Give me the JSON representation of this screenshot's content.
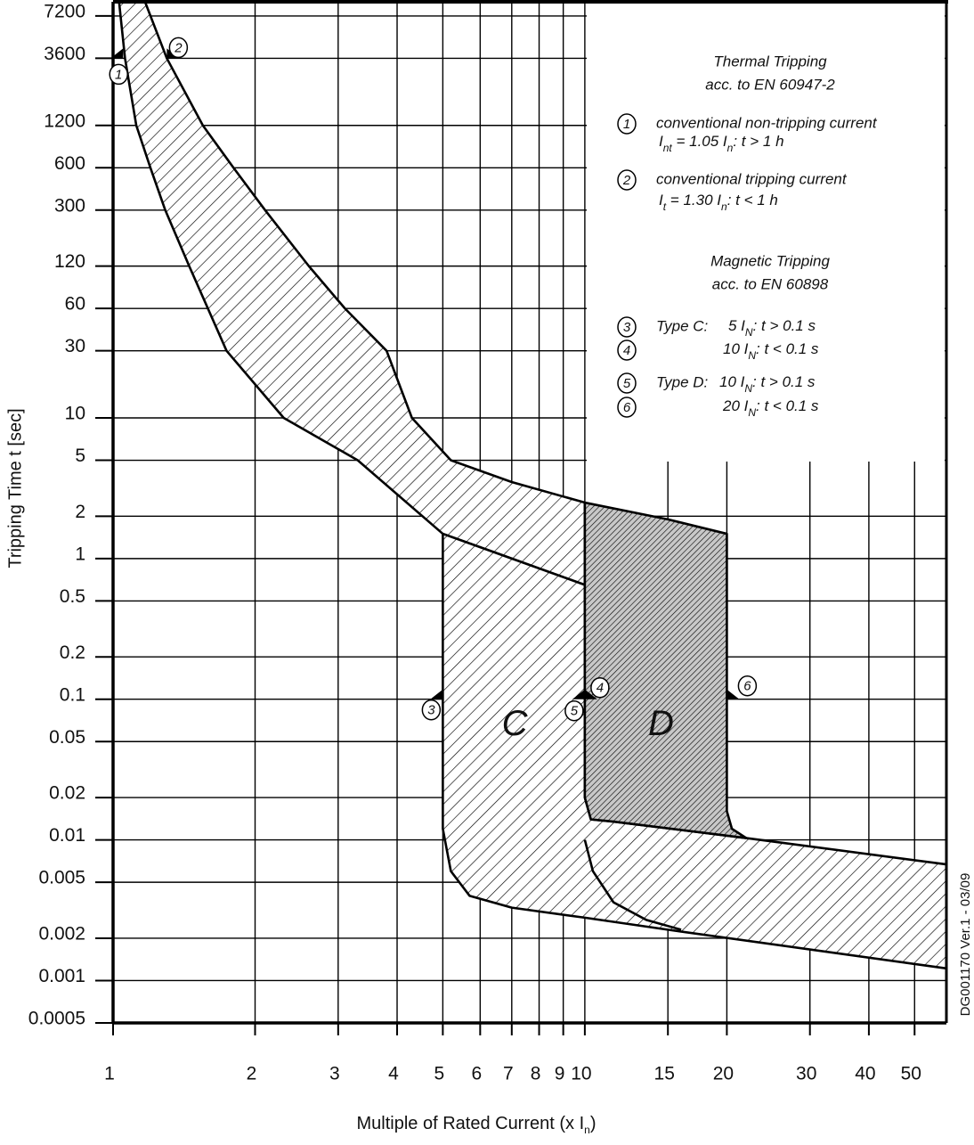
{
  "chart_data": {
    "type": "tripping-curve",
    "xscale": "log",
    "yscale": "log",
    "xlim": [
      1,
      58.4
    ],
    "ylim": [
      0.0005,
      9080
    ],
    "xticks": [
      1,
      2,
      3,
      4,
      5,
      6,
      7,
      8,
      9,
      10,
      15,
      20,
      30,
      40,
      50
    ],
    "yticks": [
      7200,
      3600,
      1200,
      600,
      300,
      120,
      60,
      30,
      10,
      5,
      2,
      1,
      0.5,
      0.2,
      0.1,
      0.05,
      0.02,
      0.01,
      0.005,
      0.002,
      0.001,
      0.0005
    ],
    "grid": true,
    "color": "#000000",
    "xlabel": [
      {
        "text": "Multiple of Rated Current (x I"
      },
      {
        "sub": "n"
      },
      {
        "text": ")"
      }
    ],
    "ylabel": "Tripping Time t [sec]",
    "footnote": "DG001170 Ver.1 - 03/09",
    "areas": [
      {
        "hatch": "sparse",
        "x": [
          1.03,
          1.06,
          1.12,
          1.2,
          1.29,
          1.45,
          1.74,
          2.3,
          3.3,
          5,
          7,
          10,
          10,
          7,
          5.2,
          4.3,
          3.8,
          3.1,
          2.6,
          2.1,
          1.8,
          1.55,
          1.3,
          1.17
        ],
        "y": [
          9000,
          3600,
          1200,
          600,
          300,
          120,
          30,
          10,
          5,
          1.5,
          1,
          0.65,
          2.5,
          3.5,
          5,
          10,
          30,
          60,
          120,
          300,
          600,
          1200,
          3600,
          9000
        ]
      },
      {
        "hatch": "sparse",
        "x": [
          5,
          7,
          10,
          10,
          10.3,
          11.5,
          22,
          58.4,
          58.4,
          15,
          10,
          7,
          5.7,
          5.2,
          5
        ],
        "y": [
          1.5,
          1,
          0.65,
          0.02,
          0.014,
          0.0135,
          0.0103,
          0.0067,
          0.00122,
          0.0023,
          0.0028,
          0.0033,
          0.004,
          0.006,
          0.012
        ]
      },
      {
        "hatch": "dense",
        "x": [
          10,
          15,
          20,
          20,
          20.5,
          22,
          11.5,
          10.3,
          10
        ],
        "y": [
          2.5,
          1.9,
          1.5,
          0.016,
          0.012,
          0.0103,
          0.0135,
          0.014,
          0.02
        ]
      }
    ],
    "lines": [
      {
        "x": [
          10,
          10.4,
          11.5,
          13.5,
          16
        ],
        "y": [
          0.01,
          0.006,
          0.0036,
          0.0027,
          0.0023
        ]
      }
    ],
    "markers": [
      {
        "label": "1",
        "x": 1.05,
        "y": 3600
      },
      {
        "label": "2",
        "x": 1.3,
        "y": 3600
      },
      {
        "label": "3",
        "x": 5,
        "y": 0.1
      },
      {
        "label": "4",
        "x": 10,
        "y": 0.1
      },
      {
        "label": "5",
        "x": 10,
        "y": 0.1
      },
      {
        "label": "6",
        "x": 20,
        "y": 0.1
      }
    ],
    "annotations": [
      {
        "text": "C",
        "x": 7.1,
        "y": 0.065
      },
      {
        "text": "D",
        "x": 14.5,
        "y": 0.065
      }
    ],
    "legend": {
      "sections": [
        {
          "title": [
            "Thermal Tripping",
            "acc. to EN 60947-2"
          ],
          "items": [
            {
              "marker": "1",
              "text": "conventional non-tripping current",
              "formula": [
                {
                  "text": "I"
                },
                {
                  "sub": "nt"
                },
                {
                  "text": "  = 1.05 I"
                },
                {
                  "sub": "n"
                },
                {
                  "text": ":  t > 1 h"
                }
              ]
            },
            {
              "marker": "2",
              "text": "conventional tripping current",
              "formula": [
                {
                  "text": "I"
                },
                {
                  "sub": "t"
                },
                {
                  "text": "  = 1.30 I"
                },
                {
                  "sub": "n"
                },
                {
                  "text": ":  t < 1 h"
                }
              ]
            }
          ]
        },
        {
          "title": [
            "Magnetic Tripping",
            "acc. to EN 60898"
          ],
          "items": [
            {
              "marker": "3",
              "text": "Type C:",
              "formula": [
                {
                  "text": "5 I"
                },
                {
                  "sub": "N"
                },
                {
                  "text": ": t > 0.1 s"
                }
              ]
            },
            {
              "marker": "4",
              "formula": [
                {
                  "text": "10 I"
                },
                {
                  "sub": "N"
                },
                {
                  "text": ": t < 0.1 s"
                }
              ]
            },
            {
              "marker": "5",
              "text": "Type D:",
              "formula": [
                {
                  "text": "10 I"
                },
                {
                  "sub": "N"
                },
                {
                  "text": ": t > 0.1 s"
                }
              ]
            },
            {
              "marker": "6",
              "formula": [
                {
                  "text": "20 I"
                },
                {
                  "sub": "N"
                },
                {
                  "text": ": t < 0.1 s"
                }
              ]
            }
          ]
        }
      ]
    }
  }
}
